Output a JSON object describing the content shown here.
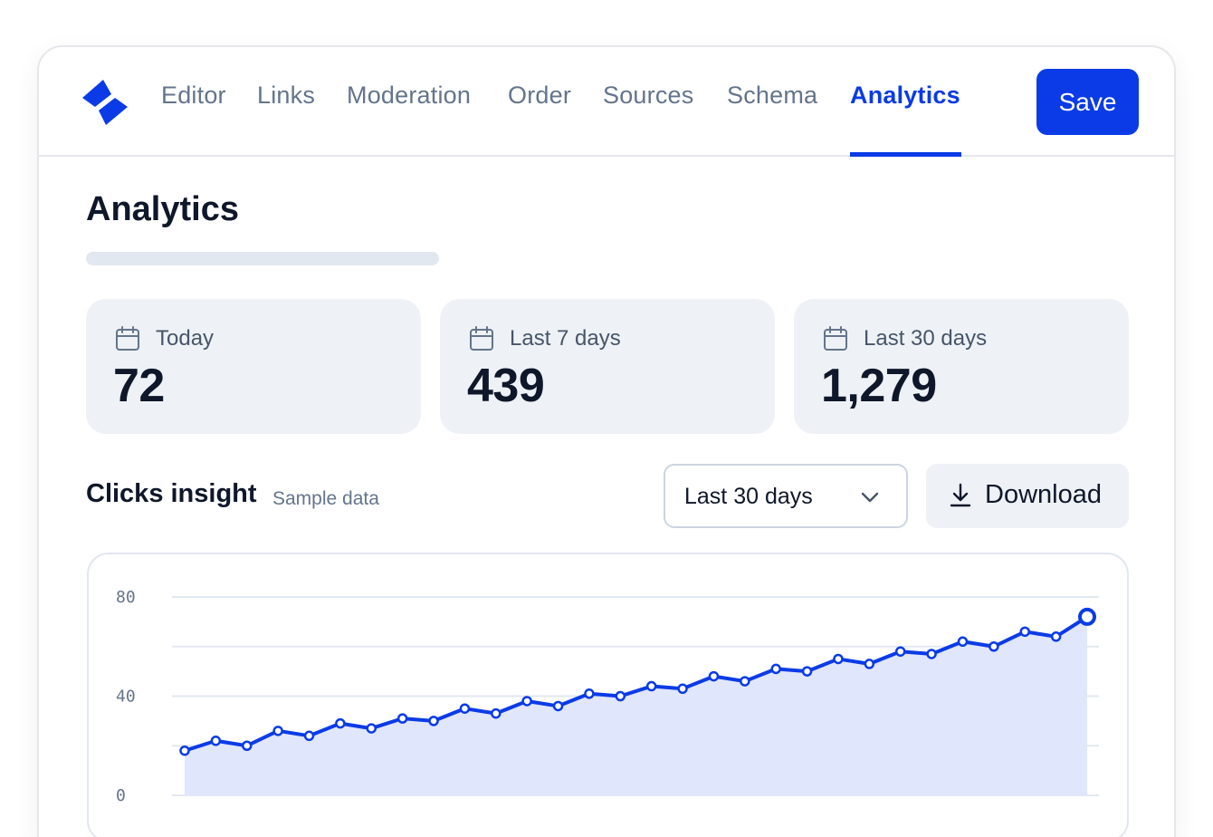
{
  "nav": {
    "items": [
      {
        "label": "Editor"
      },
      {
        "label": "Links"
      },
      {
        "label": "Moderation"
      },
      {
        "label": "Order"
      },
      {
        "label": "Sources"
      },
      {
        "label": "Schema"
      },
      {
        "label": "Analytics"
      }
    ],
    "active": "Analytics",
    "save_label": "Save"
  },
  "page": {
    "title": "Analytics"
  },
  "stats": [
    {
      "label": "Today",
      "value": "72",
      "icon": "calendar-icon"
    },
    {
      "label": "Last 7 days",
      "value": "439",
      "icon": "calendar-icon"
    },
    {
      "label": "Last 30 days",
      "value": "1,279",
      "icon": "calendar-icon"
    }
  ],
  "section": {
    "title": "Clicks insight",
    "subtitle": "Sample data",
    "range_select": "Last 30 days",
    "download_label": "Download"
  },
  "colors": {
    "accent": "#0a3be6",
    "area_fill": "#e0e6fc",
    "grid": "#e2e8f0"
  },
  "chart_data": {
    "type": "area",
    "x": [
      1,
      2,
      3,
      4,
      5,
      6,
      7,
      8,
      9,
      10,
      11,
      12,
      13,
      14,
      15,
      16,
      17,
      18,
      19,
      20,
      21,
      22,
      23,
      24,
      25,
      26,
      27,
      28,
      29,
      30
    ],
    "series": [
      {
        "values": [
          18,
          22,
          20,
          26,
          24,
          29,
          27,
          31,
          30,
          35,
          33,
          38,
          36,
          41,
          40,
          44,
          43,
          48,
          46,
          51,
          50,
          55,
          53,
          58,
          57,
          62,
          60,
          66,
          64,
          72
        ]
      }
    ],
    "yticks": [
      0,
      40,
      80
    ],
    "ylim": [
      0,
      80
    ],
    "grid": true
  }
}
